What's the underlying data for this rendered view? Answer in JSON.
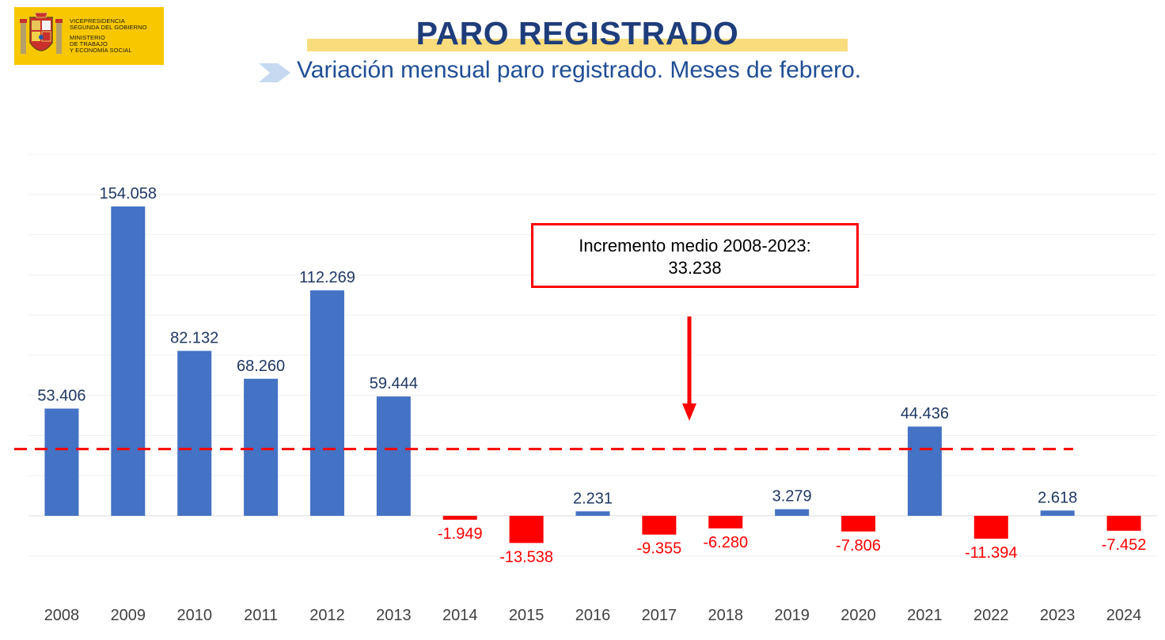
{
  "logo": {
    "line1": "VICEPRESIDENCIA",
    "line2": "SEGUNDA DEL GOBIERNO",
    "line3": "MINISTERIO",
    "line4": "DE TRABAJO",
    "line5": "Y ECONOMÍA SOCIAL",
    "background": "#f7c700"
  },
  "header": {
    "title": "PARO REGISTRADO",
    "subtitle": "Variación mensual paro registrado. Meses de febrero."
  },
  "annotation": {
    "line1": "Incremento medio 2008-2023:",
    "line2": "33.238"
  },
  "chart_data": {
    "type": "bar",
    "categories": [
      "2008",
      "2009",
      "2010",
      "2011",
      "2012",
      "2013",
      "2014",
      "2015",
      "2016",
      "2017",
      "2018",
      "2019",
      "2020",
      "2021",
      "2022",
      "2023",
      "2024"
    ],
    "values": [
      53406,
      154058,
      82132,
      68260,
      112269,
      59444,
      -1949,
      -13538,
      2231,
      -9355,
      -6280,
      3279,
      -7806,
      44436,
      -11394,
      2618,
      -7452
    ],
    "labels": [
      "53.406",
      "154.058",
      "82.132",
      "68.260",
      "112.269",
      "59.444",
      "-1.949",
      "-13.538",
      "2.231",
      "-9.355",
      "-6.280",
      "3.279",
      "-7.806",
      "44.436",
      "-11.394",
      "2.618",
      "-7.452"
    ],
    "reference_line": {
      "value": 33238,
      "style": "dashed",
      "color": "#ff0000"
    },
    "ylim": [
      -40000,
      180000
    ],
    "grid": true,
    "colors": {
      "positive": "#4472c4",
      "negative": "#ff0000",
      "positive_label": "#1f3864",
      "negative_label": "#ff0000"
    },
    "xlabel": "",
    "ylabel": ""
  }
}
